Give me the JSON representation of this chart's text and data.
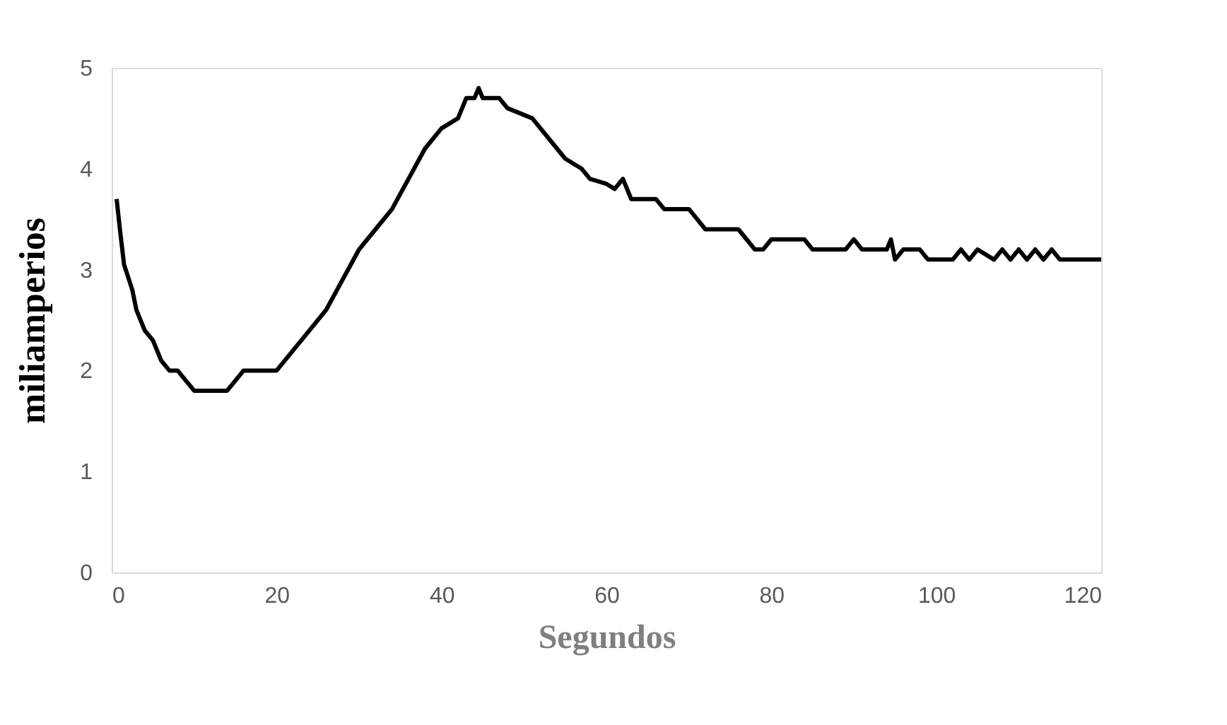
{
  "chart_data": {
    "type": "line",
    "xlabel": "Segundos",
    "ylabel": "miliamperios",
    "xlim": [
      0,
      120
    ],
    "xticks": [
      0,
      20,
      40,
      60,
      80,
      100,
      120
    ],
    "ylim": [
      0,
      5
    ],
    "yticks": [
      0,
      1,
      2,
      3,
      4,
      5
    ],
    "grid": false,
    "marker": "none",
    "line_style": "solid",
    "series": [
      {
        "color": "#000000",
        "x": [
          0.6,
          1,
          1.5,
          2.5,
          3,
          4,
          5,
          6,
          7,
          8,
          9,
          10,
          14,
          15,
          16,
          20,
          21,
          22,
          24,
          26,
          28,
          30,
          32,
          34,
          36,
          38,
          40,
          42,
          43,
          44,
          44.5,
          45,
          47,
          48,
          51,
          52,
          54,
          55,
          57,
          58,
          60,
          61,
          62,
          63,
          66,
          67,
          70,
          71,
          72,
          76,
          77,
          78,
          79,
          80,
          84,
          85,
          89,
          90,
          91,
          94,
          94.5,
          95,
          96,
          98,
          99,
          102,
          103,
          104,
          105,
          107,
          108,
          109,
          110,
          111,
          112,
          113,
          114,
          115,
          120
        ],
        "values": [
          3.7,
          3.4,
          3.05,
          2.8,
          2.6,
          2.4,
          2.3,
          2.1,
          2.0,
          2.0,
          1.9,
          1.8,
          1.8,
          1.9,
          2.0,
          2.0,
          2.1,
          2.2,
          2.4,
          2.6,
          2.9,
          3.2,
          3.4,
          3.6,
          3.9,
          4.2,
          4.4,
          4.5,
          4.7,
          4.7,
          4.8,
          4.7,
          4.7,
          4.6,
          4.5,
          4.4,
          4.2,
          4.1,
          4.0,
          3.9,
          3.85,
          3.8,
          3.9,
          3.7,
          3.7,
          3.6,
          3.6,
          3.5,
          3.4,
          3.4,
          3.3,
          3.2,
          3.2,
          3.3,
          3.3,
          3.2,
          3.2,
          3.3,
          3.2,
          3.2,
          3.3,
          3.1,
          3.2,
          3.2,
          3.1,
          3.1,
          3.2,
          3.1,
          3.2,
          3.1,
          3.2,
          3.1,
          3.2,
          3.1,
          3.2,
          3.1,
          3.2,
          3.1,
          3.1
        ]
      }
    ]
  }
}
